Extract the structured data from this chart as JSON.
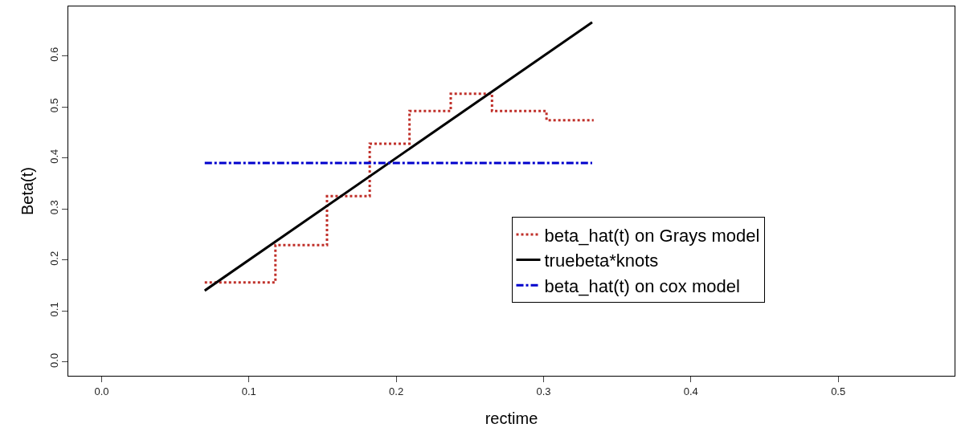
{
  "chart_data": {
    "type": "line",
    "xlabel": "rectime",
    "ylabel": "Beta(t)",
    "xlim": [
      -0.0226,
      0.579
    ],
    "xticks": [
      {
        "value": 0,
        "label": "0.0"
      },
      0.1,
      0.2,
      0.3,
      0.4,
      0.5
    ],
    "ylim": [
      -0.027,
      0.697
    ],
    "yticks": [
      {
        "value": 0,
        "label": "0.0"
      },
      0.1,
      0.2,
      0.3,
      0.4,
      0.5,
      0.6
    ],
    "grid": false,
    "legend": "right",
    "marker": "none",
    "series": [
      {
        "name": "beta_hat(t) on Grays model",
        "type": "step",
        "color": "#c0302a",
        "line_style": "dotted",
        "x": [
          0.07,
          0.118,
          0.153,
          0.182,
          0.209,
          0.237,
          0.265,
          0.302,
          0.334
        ],
        "values": [
          0.156,
          0.229,
          0.325,
          0.428,
          0.492,
          0.526,
          0.492,
          0.474,
          0.474
        ]
      },
      {
        "name": "truebeta*knots",
        "color": "#000000",
        "line_style": "solid",
        "x": [
          0.07,
          0.333
        ],
        "values": [
          0.14,
          0.666
        ]
      },
      {
        "name": "beta_hat(t) on cox model",
        "color": "#0000cc",
        "line_style": "dashdot",
        "x": [
          0.07,
          0.333
        ],
        "values": [
          0.39,
          0.39
        ]
      }
    ]
  }
}
